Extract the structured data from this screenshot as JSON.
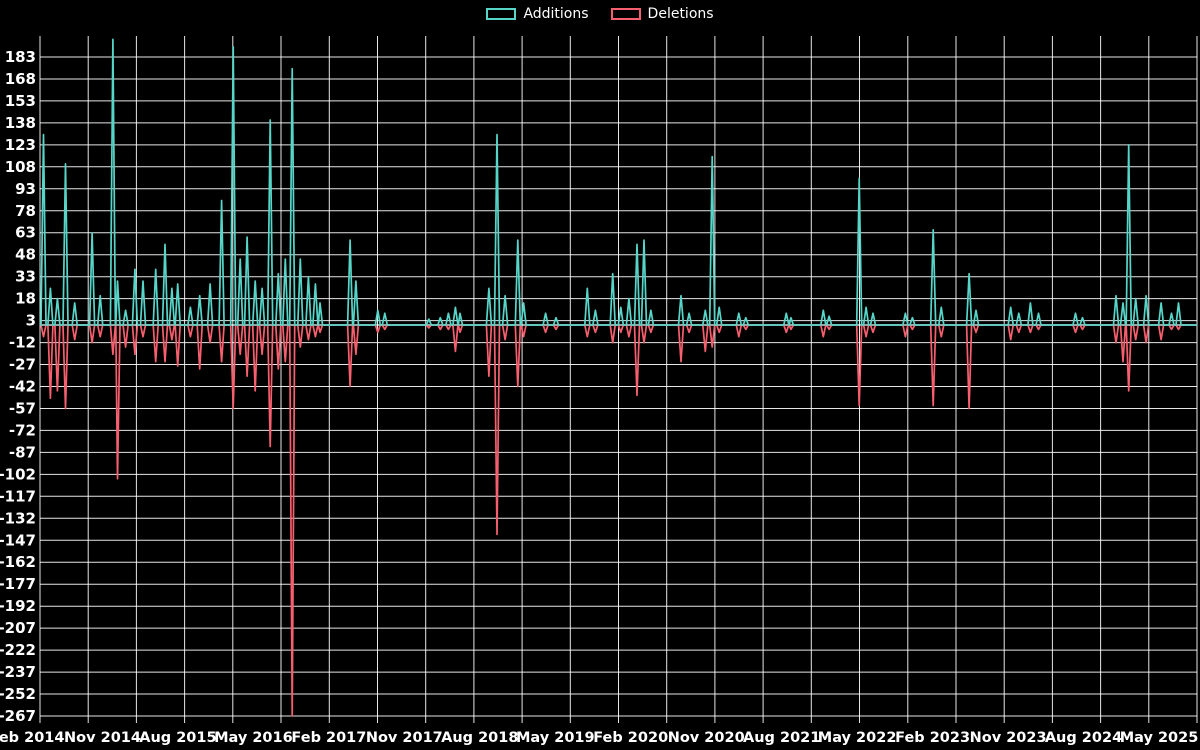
{
  "legend": {
    "additions_label": "Additions",
    "deletions_label": "Deletions"
  },
  "colors": {
    "background": "#000000",
    "grid": "#ffffff",
    "text": "#ffffff",
    "additions": "#56d6c9",
    "deletions": "#f75f6e"
  },
  "chart_data": {
    "type": "line",
    "title": "",
    "xlabel": "",
    "ylabel": "",
    "grid": true,
    "legend_position": "top-center",
    "series_names": [
      "Additions",
      "Deletions"
    ],
    "y_ticks": [
      183,
      168,
      153,
      138,
      123,
      108,
      93,
      78,
      63,
      48,
      33,
      18,
      3,
      -12,
      -27,
      -42,
      -57,
      -72,
      -87,
      -102,
      -117,
      -132,
      -147,
      -162,
      -177,
      -192,
      -207,
      -222,
      -237,
      -252,
      -267
    ],
    "y_tick_step": 15,
    "ylim": [
      -267,
      183
    ],
    "x_tick_labels": [
      "Feb 2014",
      "Nov 2014",
      "Aug 2015",
      "May 2016",
      "Feb 2017",
      "Nov 2017",
      "Aug 2018",
      "May 2019",
      "Feb 2020",
      "Nov 2020",
      "Aug 2021",
      "May 2022",
      "Feb 2023",
      "Nov 2023",
      "Aug 2024",
      "May 2025"
    ],
    "x_note": "points[i][0] is the fraction of the time axis spanning Feb 2014 to Jul 2025; points[i][1] = additions, points[i][2] = deletions",
    "points": [
      [
        0.003,
        130,
        -8
      ],
      [
        0.009,
        25,
        -50
      ],
      [
        0.015,
        18,
        -45
      ],
      [
        0.022,
        110,
        -57
      ],
      [
        0.03,
        15,
        -10
      ],
      [
        0.045,
        63,
        -12
      ],
      [
        0.052,
        20,
        -8
      ],
      [
        0.063,
        195,
        -20
      ],
      [
        0.067,
        30,
        -105
      ],
      [
        0.074,
        10,
        -15
      ],
      [
        0.082,
        38,
        -20
      ],
      [
        0.089,
        30,
        -8
      ],
      [
        0.1,
        38,
        -25
      ],
      [
        0.108,
        55,
        -25
      ],
      [
        0.114,
        25,
        -10
      ],
      [
        0.119,
        28,
        -28
      ],
      [
        0.13,
        12,
        -8
      ],
      [
        0.138,
        20,
        -30
      ],
      [
        0.147,
        28,
        -12
      ],
      [
        0.157,
        85,
        -25
      ],
      [
        0.167,
        190,
        -57
      ],
      [
        0.173,
        45,
        -20
      ],
      [
        0.179,
        60,
        -35
      ],
      [
        0.186,
        30,
        -45
      ],
      [
        0.192,
        25,
        -20
      ],
      [
        0.199,
        140,
        -83
      ],
      [
        0.206,
        35,
        -30
      ],
      [
        0.212,
        45,
        -25
      ],
      [
        0.218,
        175,
        -267
      ],
      [
        0.225,
        45,
        -15
      ],
      [
        0.232,
        33,
        -10
      ],
      [
        0.238,
        28,
        -8
      ],
      [
        0.242,
        15,
        -5
      ],
      [
        0.268,
        58,
        -42
      ],
      [
        0.273,
        30,
        -20
      ],
      [
        0.292,
        10,
        -5
      ],
      [
        0.298,
        8,
        -3
      ],
      [
        0.336,
        4,
        -2
      ],
      [
        0.346,
        5,
        -3
      ],
      [
        0.353,
        8,
        -3
      ],
      [
        0.359,
        12,
        -18
      ],
      [
        0.363,
        8,
        -5
      ],
      [
        0.388,
        25,
        -35
      ],
      [
        0.395,
        130,
        -143
      ],
      [
        0.402,
        20,
        -10
      ],
      [
        0.413,
        58,
        -42
      ],
      [
        0.418,
        15,
        -8
      ],
      [
        0.437,
        8,
        -5
      ],
      [
        0.446,
        5,
        -3
      ],
      [
        0.473,
        25,
        -8
      ],
      [
        0.48,
        10,
        -5
      ],
      [
        0.495,
        35,
        -12
      ],
      [
        0.502,
        12,
        -5
      ],
      [
        0.509,
        18,
        -8
      ],
      [
        0.516,
        55,
        -48
      ],
      [
        0.522,
        58,
        -12
      ],
      [
        0.528,
        10,
        -5
      ],
      [
        0.554,
        20,
        -25
      ],
      [
        0.561,
        8,
        -5
      ],
      [
        0.575,
        10,
        -18
      ],
      [
        0.581,
        115,
        -15
      ],
      [
        0.587,
        12,
        -5
      ],
      [
        0.604,
        8,
        -8
      ],
      [
        0.61,
        5,
        -3
      ],
      [
        0.645,
        8,
        -5
      ],
      [
        0.649,
        5,
        -3
      ],
      [
        0.677,
        10,
        -8
      ],
      [
        0.682,
        6,
        -3
      ],
      [
        0.708,
        100,
        -55
      ],
      [
        0.714,
        12,
        -8
      ],
      [
        0.72,
        8,
        -5
      ],
      [
        0.748,
        8,
        -8
      ],
      [
        0.754,
        5,
        -3
      ],
      [
        0.772,
        65,
        -55
      ],
      [
        0.779,
        12,
        -8
      ],
      [
        0.803,
        35,
        -57
      ],
      [
        0.809,
        10,
        -5
      ],
      [
        0.839,
        12,
        -10
      ],
      [
        0.846,
        8,
        -5
      ],
      [
        0.856,
        15,
        -5
      ],
      [
        0.863,
        8,
        -3
      ],
      [
        0.895,
        8,
        -5
      ],
      [
        0.901,
        5,
        -3
      ],
      [
        0.93,
        20,
        -12
      ],
      [
        0.936,
        15,
        -25
      ],
      [
        0.941,
        123,
        -45
      ],
      [
        0.947,
        18,
        -10
      ],
      [
        0.956,
        20,
        -12
      ],
      [
        0.969,
        15,
        -10
      ],
      [
        0.978,
        8,
        -3
      ],
      [
        0.984,
        15,
        -3
      ]
    ]
  }
}
